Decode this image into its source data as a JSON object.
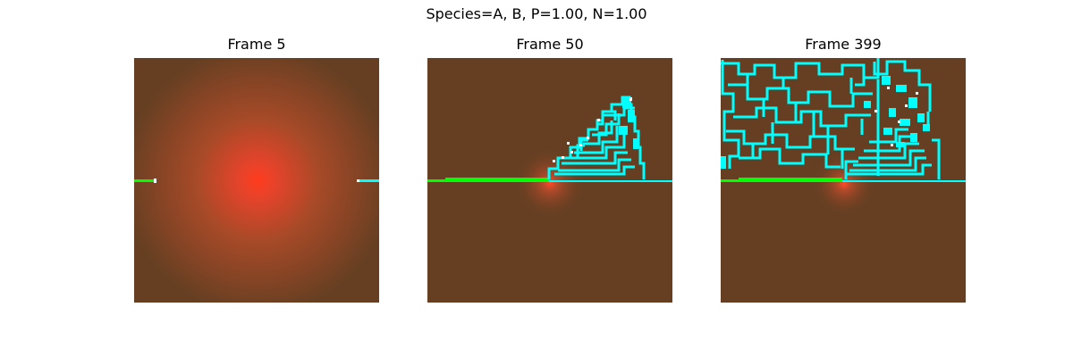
{
  "suptitle": "Species=A, B, P=1.00, N=1.00",
  "frames": [
    {
      "title": "Frame 5"
    },
    {
      "title": "Frame 50"
    },
    {
      "title": "Frame 399"
    }
  ],
  "colors": {
    "background": "#663f22",
    "species_a": "#00ff00",
    "species_b": "#00ffff",
    "source_glow": "#ff3b1e"
  }
}
